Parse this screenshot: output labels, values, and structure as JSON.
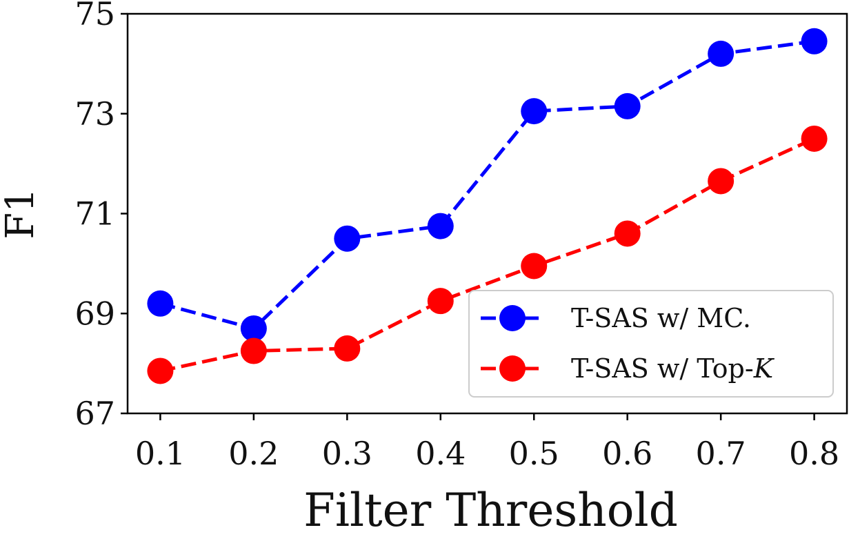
{
  "chart_data": {
    "type": "line",
    "title": "",
    "xlabel": "Filter Threshold",
    "ylabel": "F1",
    "x": [
      0.1,
      0.2,
      0.3,
      0.4,
      0.5,
      0.6,
      0.7,
      0.8
    ],
    "x_tick_labels": [
      "0.1",
      "0.2",
      "0.3",
      "0.4",
      "0.5",
      "0.6",
      "0.7",
      "0.8"
    ],
    "y_ticks": [
      67,
      69,
      71,
      73,
      75
    ],
    "y_tick_labels": [
      "67",
      "69",
      "71",
      "73",
      "75"
    ],
    "xlim": [
      0.065,
      0.835
    ],
    "ylim": [
      67,
      75
    ],
    "grid": false,
    "legend_position": "lower-right",
    "series": [
      {
        "name_prefix": "T-SAS w/ MC.",
        "name_italic": "",
        "color": "#0000ff",
        "values": [
          69.2,
          68.7,
          70.5,
          70.75,
          73.05,
          73.15,
          74.2,
          74.45
        ]
      },
      {
        "name_prefix": "T-SAS w/ Top-",
        "name_italic": "K",
        "color": "#ff0000",
        "values": [
          67.85,
          68.25,
          68.3,
          69.25,
          69.95,
          70.6,
          71.65,
          72.5
        ]
      }
    ]
  }
}
